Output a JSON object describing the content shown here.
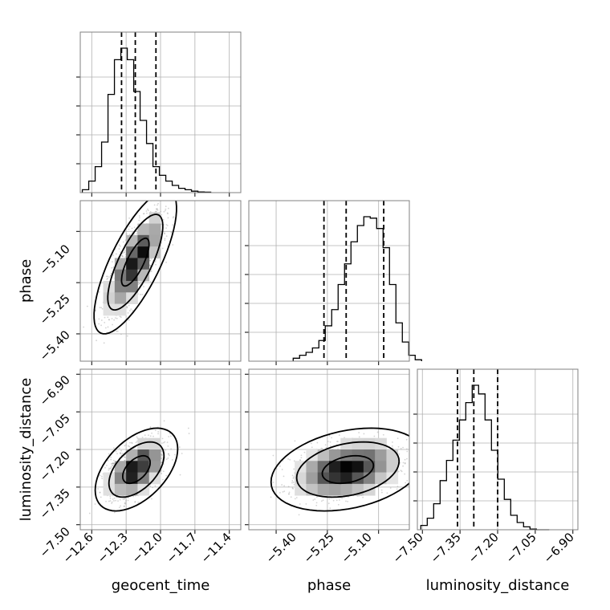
{
  "chart_data": {
    "type": "corner",
    "parameters": [
      "geocent_time",
      "phase",
      "luminosity_distance"
    ],
    "grid": true,
    "colors": {
      "line": "#000000",
      "grid": "#b0b0b0",
      "points": "#a0a0a0",
      "frame": "#808080"
    },
    "axes": {
      "geocent_time": {
        "range": [
          -12.7,
          -11.3
        ],
        "ticks": [
          "-12.6",
          "-12.3",
          "-12.0",
          "-11.7",
          "-11.4"
        ]
      },
      "phase": {
        "range": [
          -5.48,
          -5.01
        ],
        "ticks": [
          "-5.40",
          "-5.25",
          "-5.10"
        ]
      },
      "luminosity_distance": {
        "range": [
          -7.52,
          -6.88
        ],
        "ticks": [
          "-7.50",
          "-7.35",
          "-7.20",
          "-7.05",
          "-6.90"
        ]
      }
    },
    "marginals": [
      {
        "parameter": "geocent_time",
        "quantiles": [
          -12.34,
          -12.22,
          -12.04
        ],
        "hist_counts": [
          2,
          8,
          18,
          35,
          68,
          92,
          100,
          92,
          70,
          50,
          34,
          18,
          12,
          8,
          5,
          3,
          2,
          1,
          0.5,
          0.3
        ]
      },
      {
        "parameter": "phase",
        "quantiles": [
          -5.26,
          -5.195,
          -5.085
        ],
        "hist_counts": [
          2,
          4,
          6,
          9,
          14,
          24,
          35,
          52,
          66,
          81,
          92,
          98,
          97,
          90,
          77,
          52,
          26,
          13,
          4,
          1
        ]
      },
      {
        "parameter": "luminosity_distance",
        "quantiles": [
          -7.36,
          -7.295,
          -7.2
        ],
        "hist_counts": [
          3,
          8,
          18,
          34,
          48,
          62,
          76,
          88,
          100,
          94,
          76,
          55,
          35,
          21,
          10,
          5,
          2,
          0.5,
          0,
          0
        ]
      }
    ],
    "joint": [
      {
        "x": "geocent_time",
        "y": "phase",
        "mean": [
          -12.22,
          -5.19
        ],
        "sd": [
          0.12,
          0.07
        ],
        "rho": 0.75,
        "levels": [
          1.0,
          2.0,
          3.0
        ]
      },
      {
        "x": "geocent_time",
        "y": "luminosity_distance",
        "mean": [
          -12.21,
          -7.28
        ],
        "sd": [
          0.12,
          0.055
        ],
        "rho": 0.5,
        "levels": [
          1.0,
          2.0,
          3.0
        ]
      },
      {
        "x": "phase",
        "y": "luminosity_distance",
        "mean": [
          -5.19,
          -7.28
        ],
        "sd": [
          0.075,
          0.055
        ],
        "rho": 0.3,
        "levels": [
          1.0,
          2.0,
          3.0
        ]
      }
    ]
  }
}
